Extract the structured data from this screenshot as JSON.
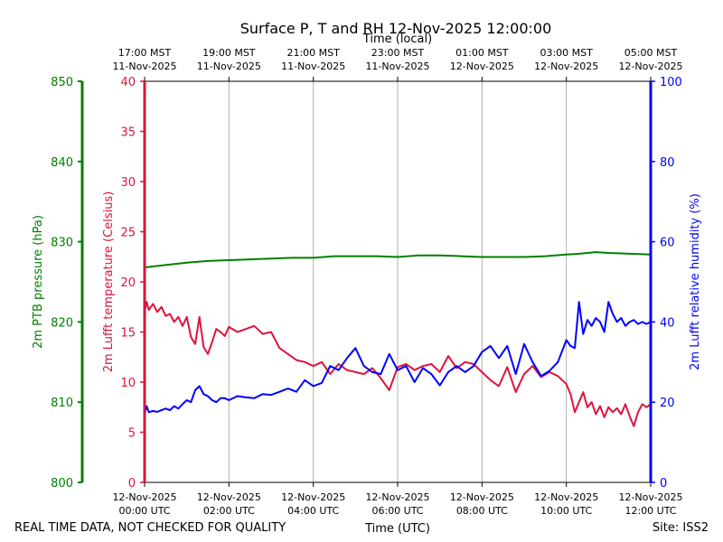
{
  "chart_data": {
    "type": "line",
    "title": "Surface P, T and RH 12-Nov-2025 12:00:00",
    "top_axis_label": "Time (local)",
    "bottom_axis_label": "Time (UTC)",
    "footer_left": "REAL TIME DATA, NOT CHECKED FOR QUALITY",
    "footer_right": "Site: ISS2",
    "x_range": [
      0,
      12
    ],
    "x_unit": "hours since 12-Nov-2025 00:00 UTC",
    "bottom_ticks": [
      {
        "x": 0,
        "line1": "12-Nov-2025",
        "line2": "00:00 UTC"
      },
      {
        "x": 2,
        "line1": "12-Nov-2025",
        "line2": "02:00 UTC"
      },
      {
        "x": 4,
        "line1": "12-Nov-2025",
        "line2": "04:00 UTC"
      },
      {
        "x": 6,
        "line1": "12-Nov-2025",
        "line2": "06:00 UTC"
      },
      {
        "x": 8,
        "line1": "12-Nov-2025",
        "line2": "08:00 UTC"
      },
      {
        "x": 10,
        "line1": "12-Nov-2025",
        "line2": "10:00 UTC"
      },
      {
        "x": 12,
        "line1": "12-Nov-2025",
        "line2": "12:00 UTC"
      }
    ],
    "top_ticks": [
      {
        "x": 0,
        "line1": "17:00 MST",
        "line2": "11-Nov-2025"
      },
      {
        "x": 2,
        "line1": "19:00 MST",
        "line2": "11-Nov-2025"
      },
      {
        "x": 4,
        "line1": "21:00 MST",
        "line2": "11-Nov-2025"
      },
      {
        "x": 6,
        "line1": "23:00 MST",
        "line2": "11-Nov-2025"
      },
      {
        "x": 8,
        "line1": "01:00 MST",
        "line2": "12-Nov-2025"
      },
      {
        "x": 10,
        "line1": "03:00 MST",
        "line2": "12-Nov-2025"
      },
      {
        "x": 12,
        "line1": "05:00 MST",
        "line2": "12-Nov-2025"
      }
    ],
    "axes": {
      "pressure": {
        "label": "2m PTB pressure (hPa)",
        "color": "#008000",
        "range": [
          800,
          850
        ],
        "ticks": [
          "800",
          "810",
          "820",
          "830",
          "840",
          "850"
        ]
      },
      "temperature": {
        "label": "2m Lufft temperature (Celsius)",
        "color": "#dc143c",
        "range": [
          0,
          40
        ],
        "ticks": [
          "0",
          "5",
          "10",
          "15",
          "20",
          "25",
          "30",
          "35",
          "40"
        ]
      },
      "humidity": {
        "label": "2m Lufft relative humidity (%)",
        "color": "#0000ff",
        "range": [
          0,
          100
        ],
        "ticks": [
          "0",
          "20",
          "40",
          "60",
          "80",
          "100"
        ]
      }
    },
    "series": [
      {
        "name": "2m PTB pressure",
        "axis": "pressure",
        "color": "#008000",
        "x": [
          0,
          0.5,
          1,
          1.5,
          2,
          2.5,
          3,
          3.5,
          4,
          4.5,
          5,
          5.5,
          6,
          6.5,
          7,
          7.5,
          8,
          8.5,
          9,
          9.5,
          10,
          10.3,
          10.7,
          11,
          11.5,
          12
        ],
        "values": [
          826.8,
          827.1,
          827.4,
          827.6,
          827.7,
          827.8,
          827.9,
          828.0,
          828.0,
          828.2,
          828.2,
          828.2,
          828.1,
          828.3,
          828.3,
          828.2,
          828.1,
          828.1,
          828.1,
          828.2,
          828.4,
          828.5,
          828.7,
          828.6,
          828.5,
          828.4
        ]
      },
      {
        "name": "2m Lufft temperature",
        "axis": "temperature",
        "color": "#dc143c",
        "x": [
          0,
          0.05,
          0.1,
          0.2,
          0.3,
          0.4,
          0.5,
          0.6,
          0.7,
          0.8,
          0.9,
          1.0,
          1.1,
          1.2,
          1.3,
          1.4,
          1.5,
          1.6,
          1.7,
          1.8,
          1.9,
          2.0,
          2.2,
          2.4,
          2.6,
          2.8,
          3.0,
          3.2,
          3.4,
          3.6,
          3.8,
          4.0,
          4.2,
          4.4,
          4.6,
          4.8,
          5.0,
          5.2,
          5.4,
          5.6,
          5.8,
          6.0,
          6.2,
          6.4,
          6.6,
          6.8,
          7.0,
          7.2,
          7.4,
          7.6,
          7.8,
          8.0,
          8.2,
          8.4,
          8.6,
          8.8,
          9.0,
          9.2,
          9.4,
          9.6,
          9.8,
          10.0,
          10.1,
          10.2,
          10.3,
          10.4,
          10.5,
          10.6,
          10.7,
          10.8,
          10.9,
          11.0,
          11.1,
          11.2,
          11.3,
          11.4,
          11.5,
          11.6,
          11.7,
          11.8,
          11.9,
          12.0
        ],
        "values": [
          17.0,
          18.0,
          17.2,
          17.8,
          17.0,
          17.5,
          16.6,
          16.8,
          16.0,
          16.5,
          15.6,
          16.5,
          14.5,
          13.8,
          16.5,
          13.5,
          12.8,
          14.0,
          15.3,
          15.0,
          14.6,
          15.5,
          15.0,
          15.3,
          15.6,
          14.8,
          15.0,
          13.4,
          12.8,
          12.2,
          12.0,
          11.6,
          12.0,
          10.8,
          11.8,
          11.2,
          11.0,
          10.8,
          11.4,
          10.4,
          9.2,
          11.5,
          11.8,
          11.2,
          11.6,
          11.8,
          11.0,
          12.6,
          11.4,
          12.0,
          11.8,
          11.0,
          10.2,
          9.6,
          11.5,
          9.0,
          10.8,
          11.6,
          10.5,
          11.0,
          10.6,
          9.8,
          8.8,
          7.0,
          8.0,
          9.0,
          7.5,
          8.0,
          6.8,
          7.6,
          6.5,
          7.5,
          7.0,
          7.4,
          6.8,
          7.8,
          6.6,
          5.6,
          7.0,
          7.8,
          7.5,
          7.8
        ]
      },
      {
        "name": "2m Lufft relative humidity",
        "axis": "humidity",
        "color": "#0000ff",
        "x": [
          0,
          0.05,
          0.1,
          0.2,
          0.3,
          0.4,
          0.5,
          0.6,
          0.7,
          0.8,
          0.9,
          1.0,
          1.1,
          1.2,
          1.3,
          1.4,
          1.5,
          1.6,
          1.7,
          1.8,
          1.9,
          2.0,
          2.2,
          2.4,
          2.6,
          2.8,
          3.0,
          3.2,
          3.4,
          3.6,
          3.8,
          4.0,
          4.2,
          4.4,
          4.6,
          4.8,
          5.0,
          5.2,
          5.4,
          5.6,
          5.8,
          6.0,
          6.2,
          6.4,
          6.6,
          6.8,
          7.0,
          7.2,
          7.4,
          7.6,
          7.8,
          8.0,
          8.2,
          8.4,
          8.6,
          8.8,
          9.0,
          9.2,
          9.4,
          9.6,
          9.8,
          10.0,
          10.1,
          10.2,
          10.3,
          10.4,
          10.5,
          10.6,
          10.7,
          10.8,
          10.9,
          11.0,
          11.1,
          11.2,
          11.3,
          11.4,
          11.5,
          11.6,
          11.7,
          11.8,
          11.9,
          12.0
        ],
        "values": [
          17.0,
          19.0,
          17.5,
          17.8,
          17.6,
          18.0,
          18.4,
          18.0,
          19.0,
          18.4,
          19.5,
          20.5,
          20.0,
          23.0,
          24.0,
          22.0,
          21.5,
          20.5,
          20.0,
          21.0,
          21.0,
          20.5,
          21.5,
          21.2,
          21.0,
          22.0,
          21.8,
          22.6,
          23.4,
          22.6,
          25.5,
          24.0,
          24.8,
          29.0,
          28.0,
          31.0,
          33.5,
          29.0,
          27.5,
          27.0,
          32.0,
          28.0,
          29.0,
          25.0,
          28.5,
          27.0,
          24.2,
          27.5,
          29.0,
          27.5,
          29.0,
          32.5,
          34.0,
          31.0,
          34.0,
          27.0,
          34.5,
          30.0,
          26.5,
          27.8,
          30.0,
          35.5,
          34.0,
          33.5,
          45.0,
          37.0,
          40.5,
          39.0,
          41.0,
          40.0,
          37.5,
          45.0,
          42.0,
          40.0,
          41.0,
          39.0,
          40.0,
          40.5,
          39.5,
          40.0,
          39.5,
          40.0
        ]
      }
    ]
  }
}
